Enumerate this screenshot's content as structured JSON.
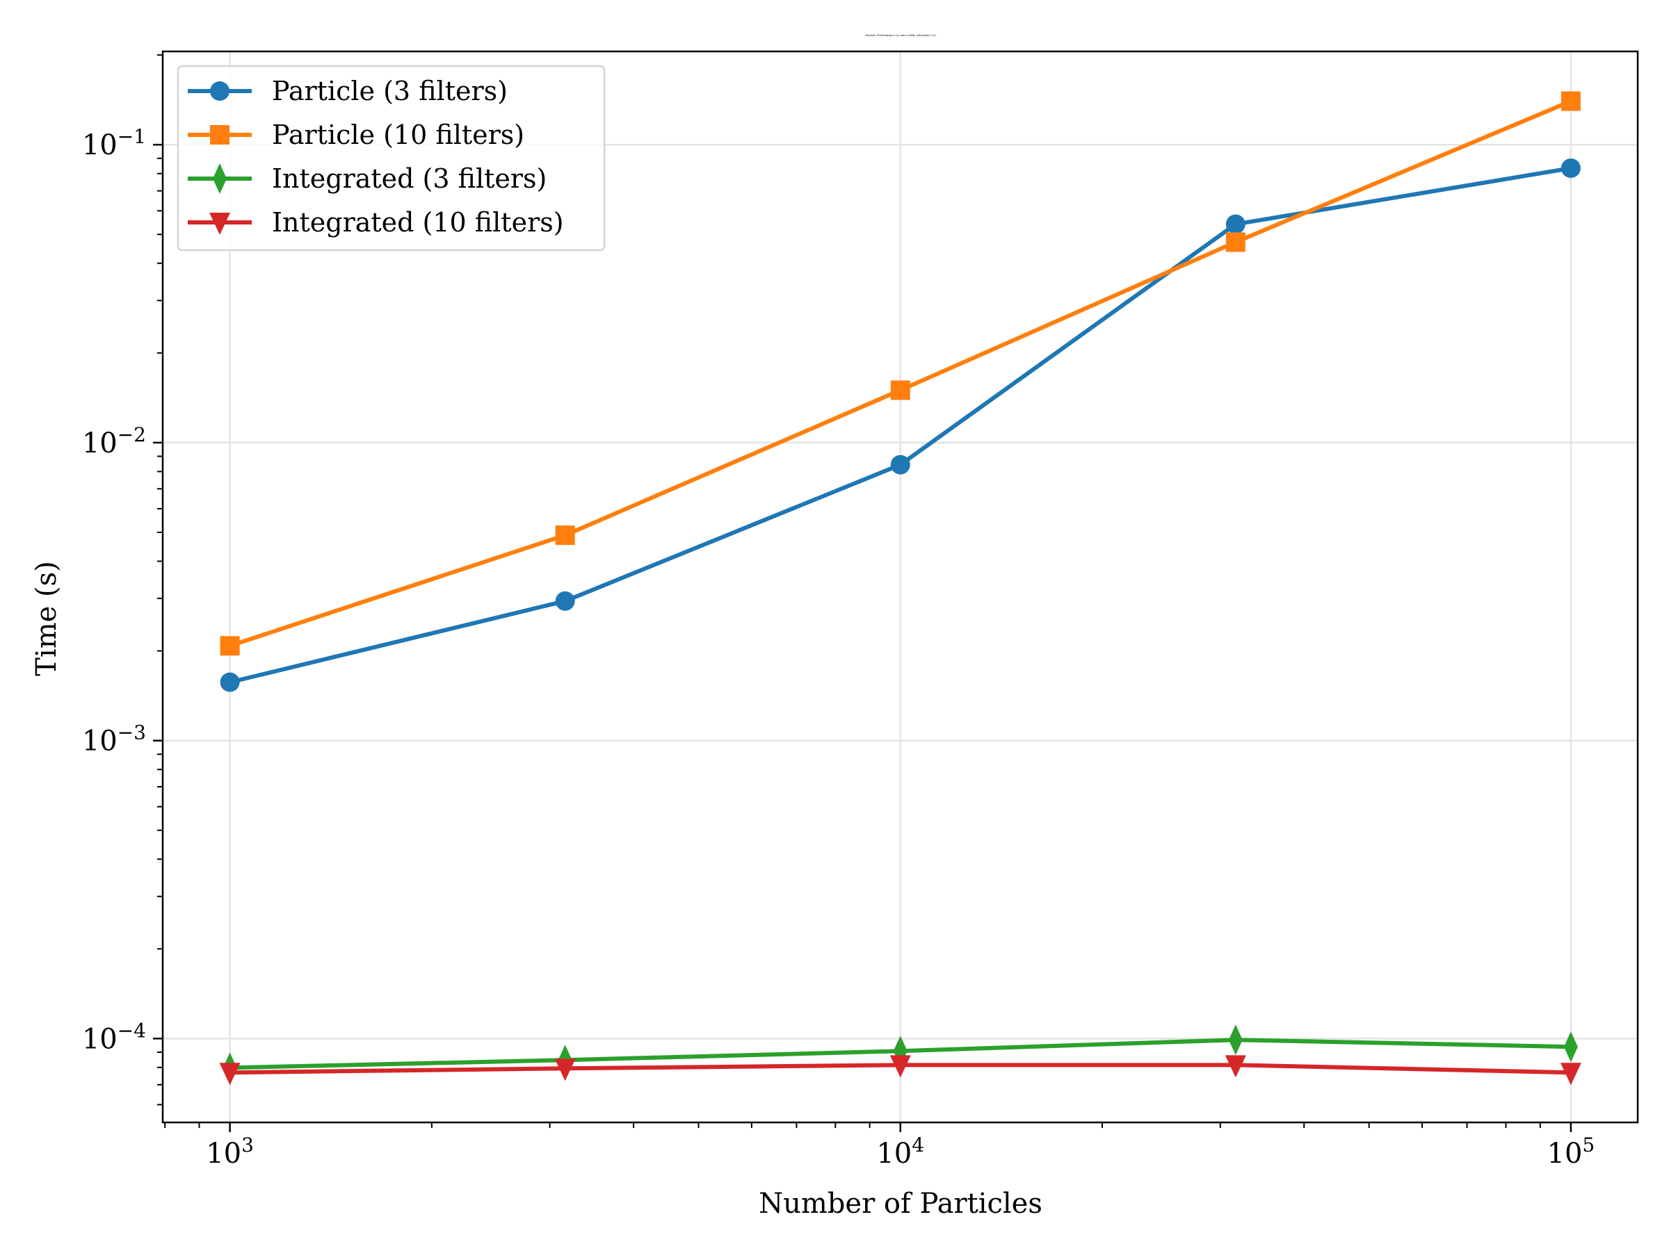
{
  "chart_data": {
    "type": "line",
    "title": "Particle Performance (n_lam=2044, nthreads=32)",
    "xlabel": "Number of Particles",
    "ylabel": "Time (s)",
    "xscale": "log",
    "yscale": "log",
    "xlim": [
      794,
      125800
    ],
    "ylim": [
      5.23e-05,
      0.2056
    ],
    "grid": true,
    "legend_position": "top-left",
    "x": [
      1000,
      3162,
      10000,
      31623,
      100000
    ],
    "x_ticks": [
      {
        "value": 1000,
        "base": "10",
        "exp": "3"
      },
      {
        "value": 10000,
        "base": "10",
        "exp": "4"
      },
      {
        "value": 100000,
        "base": "10",
        "exp": "5"
      }
    ],
    "y_ticks": [
      {
        "value": 0.1,
        "base": "10",
        "exp": "−1"
      },
      {
        "value": 0.01,
        "base": "10",
        "exp": "−2"
      },
      {
        "value": 0.001,
        "base": "10",
        "exp": "−3"
      },
      {
        "value": 0.0001,
        "base": "10",
        "exp": "−4"
      }
    ],
    "series": [
      {
        "name": "Particle (3 filters)",
        "color": "#1f77b4",
        "marker": "circle",
        "values": [
          0.00157,
          0.00294,
          0.00843,
          0.0541,
          0.0834
        ]
      },
      {
        "name": "Particle (10 filters)",
        "color": "#ff7f0e",
        "marker": "square",
        "values": [
          0.00208,
          0.00489,
          0.015,
          0.0471,
          0.14
        ]
      },
      {
        "name": "Integrated (3 filters)",
        "color": "#2ca02c",
        "marker": "thin-diamond",
        "values": [
          7.98e-05,
          8.47e-05,
          9.08e-05,
          9.9e-05,
          9.38e-05
        ]
      },
      {
        "name": "Integrated (10 filters)",
        "color": "#d62728",
        "marker": "triangle-down",
        "values": [
          7.69e-05,
          7.94e-05,
          8.15e-05,
          8.15e-05,
          7.69e-05
        ]
      }
    ]
  }
}
